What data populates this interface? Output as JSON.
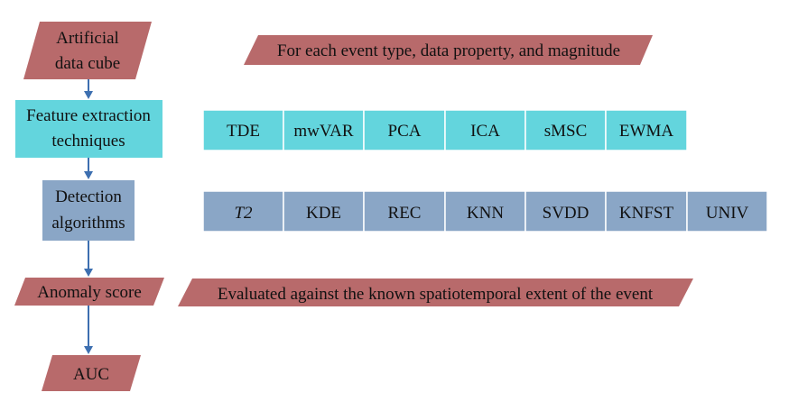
{
  "steps": {
    "cube": {
      "line1": "Artificial",
      "line2": "data cube"
    },
    "feature": {
      "line1": "Feature extraction",
      "line2": "techniques"
    },
    "detection": {
      "line1": "Detection",
      "line2": "algorithms"
    },
    "anomaly": {
      "label": "Anomaly score"
    },
    "auc": {
      "label": "AUC"
    }
  },
  "notes": {
    "top": "For each event type, data property, and magnitude",
    "evaluated": "Evaluated against the known spatiotemporal extent of the event"
  },
  "feature_techniques": [
    "TDE",
    "mwVAR",
    "PCA",
    "ICA",
    "sMSC",
    "EWMA"
  ],
  "detection_algorithms": [
    "T2",
    "KDE",
    "REC",
    "KNN",
    "SVDD",
    "KNFST",
    "UNIV"
  ],
  "colors": {
    "parallelogram": "#b86a6b",
    "feature_fill": "#63d5dd",
    "detection_fill": "#8aa6c6",
    "arrow": "#3d6fb0"
  }
}
